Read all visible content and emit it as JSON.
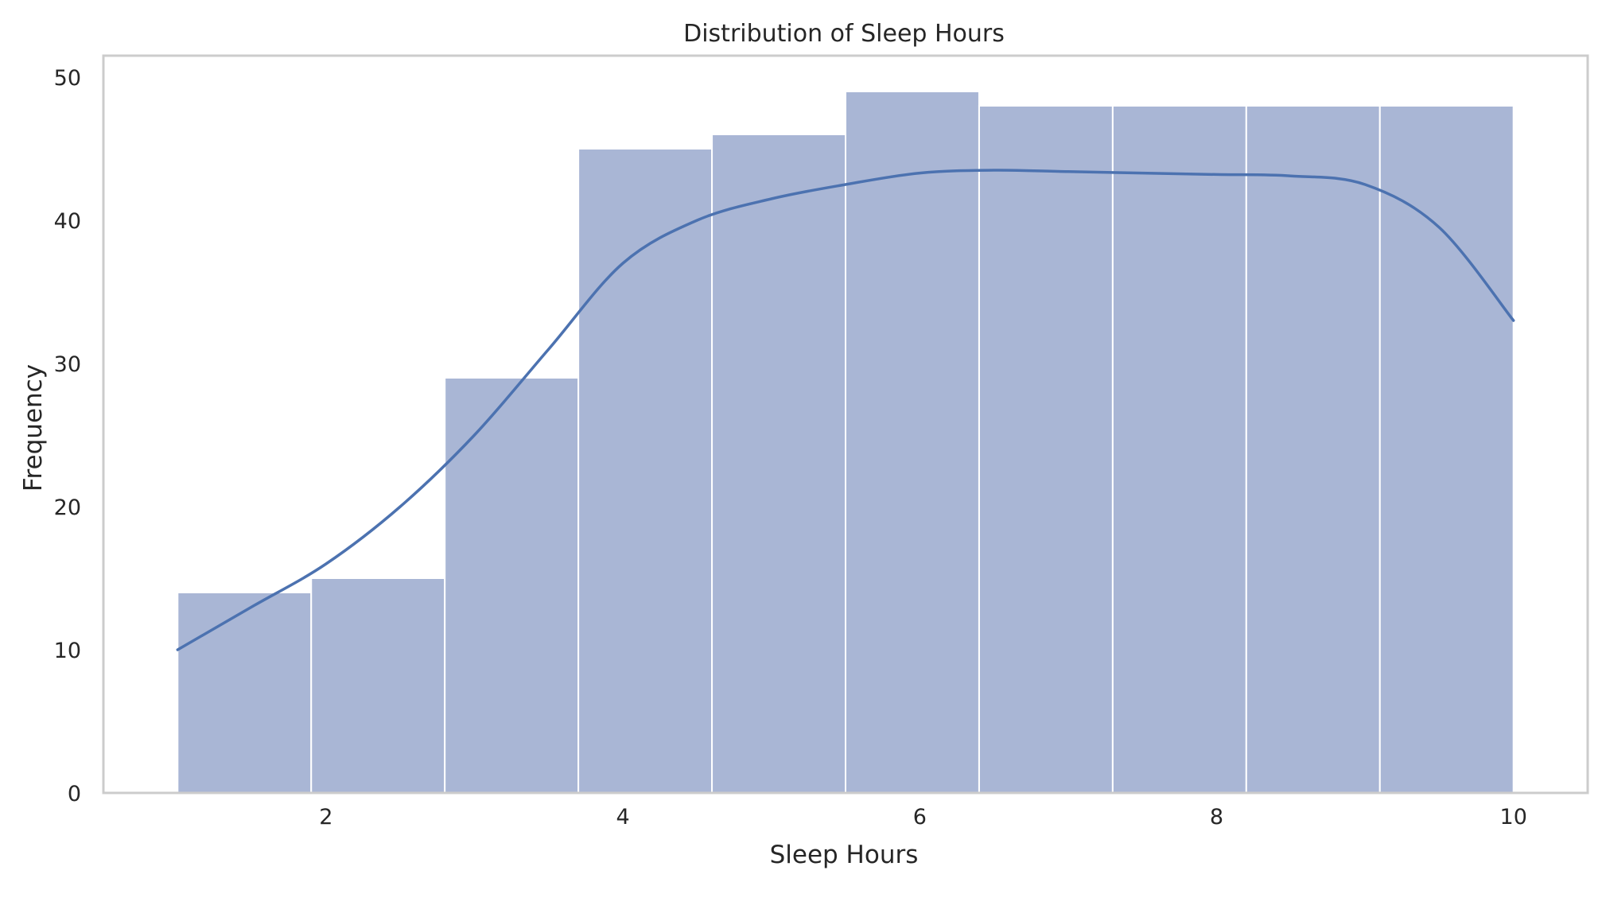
{
  "chart_data": {
    "type": "bar",
    "subtype": "histogram",
    "title": "Distribution of Sleep Hours",
    "xlabel": "Sleep Hours",
    "ylabel": "Frequency",
    "xlim": [
      0.5,
      10.5
    ],
    "ylim": [
      0,
      51.5
    ],
    "xticks": [
      2,
      4,
      6,
      8,
      10
    ],
    "yticks": [
      0,
      10,
      20,
      30,
      40,
      50
    ],
    "bins": [
      {
        "x0": 1.0,
        "x1": 1.9,
        "value": 14
      },
      {
        "x0": 1.9,
        "x1": 2.8,
        "value": 15
      },
      {
        "x0": 2.8,
        "x1": 3.7,
        "value": 29
      },
      {
        "x0": 3.7,
        "x1": 4.6,
        "value": 45
      },
      {
        "x0": 4.6,
        "x1": 5.5,
        "value": 46
      },
      {
        "x0": 5.5,
        "x1": 6.4,
        "value": 49
      },
      {
        "x0": 6.4,
        "x1": 7.3,
        "value": 48
      },
      {
        "x0": 7.3,
        "x1": 8.2,
        "value": 48
      },
      {
        "x0": 8.2,
        "x1": 9.1,
        "value": 48
      },
      {
        "x0": 9.1,
        "x1": 10.0,
        "value": 48
      }
    ],
    "kde": {
      "x": [
        1.0,
        1.5,
        2.0,
        2.5,
        3.0,
        3.5,
        4.0,
        4.5,
        5.0,
        5.5,
        6.0,
        6.5,
        7.0,
        7.5,
        8.0,
        8.5,
        9.0,
        9.5,
        10.0
      ],
      "y": [
        10,
        13,
        16,
        20,
        25,
        31,
        37,
        40,
        41.5,
        42.5,
        43.3,
        43.5,
        43.4,
        43.3,
        43.2,
        43.1,
        42.5,
        39.5,
        33
      ]
    },
    "grid": false,
    "legend": "none"
  },
  "colors": {
    "bar_fill": "#a9b6d5",
    "bar_edge": "#ffffff",
    "kde_line": "#4c72b0",
    "frame": "#cccccc",
    "text": "#262626"
  }
}
